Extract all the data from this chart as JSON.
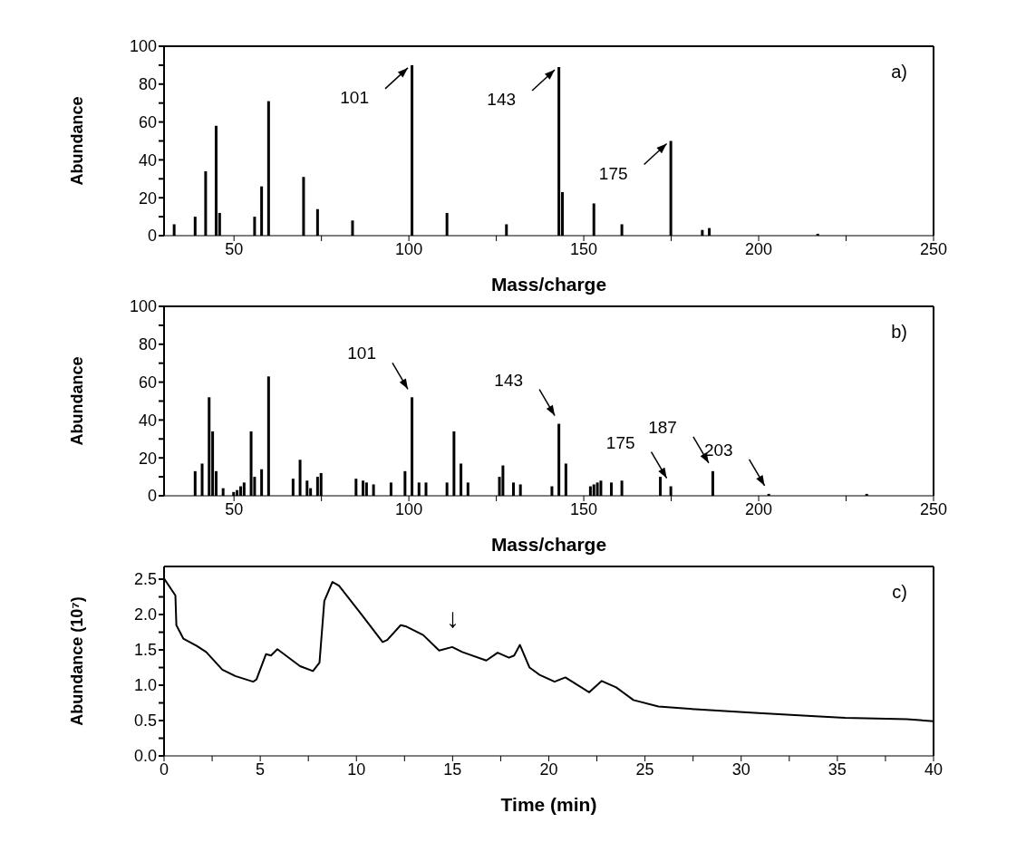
{
  "chart_data": [
    {
      "type": "bar",
      "xlabel": "Mass/charge",
      "ylabel": "Abundance",
      "color": "#000000",
      "x": [
        33,
        39,
        42,
        45,
        46,
        56,
        58,
        60,
        70,
        74,
        84,
        101,
        111,
        128,
        143,
        144,
        153,
        161,
        175,
        184,
        186,
        217
      ],
      "values": [
        6,
        10,
        34,
        58,
        12,
        10,
        26,
        71,
        31,
        14,
        8,
        90,
        12,
        6,
        89,
        23,
        17,
        6,
        50,
        3,
        4,
        1
      ],
      "xlim": [
        30,
        250
      ],
      "xticks": [
        50,
        {
          "value": 75,
          "label": null
        },
        100,
        {
          "value": 125,
          "label": null
        },
        150,
        {
          "value": 175,
          "label": null
        },
        200,
        {
          "value": 225,
          "label": null
        },
        250
      ],
      "ylim": [
        0,
        100
      ],
      "yticks": [
        0,
        {
          "value": 10,
          "label": null
        },
        20,
        {
          "value": 30,
          "label": null
        },
        40,
        {
          "value": 50,
          "label": null
        },
        60,
        {
          "value": 70,
          "label": null
        },
        80,
        {
          "value": 90,
          "label": null
        },
        100
      ],
      "annotations": [
        "a)",
        {
          "text": "101",
          "x": 101,
          "y": 90
        },
        {
          "text": "143",
          "x": 143,
          "y": 89
        },
        {
          "text": "175",
          "x": 175,
          "y": 50
        }
      ]
    },
    {
      "type": "bar",
      "xlabel": "Mass/charge",
      "ylabel": "Abundance",
      "color": "#000000",
      "x": [
        39,
        41,
        43,
        44,
        45,
        47,
        50,
        51,
        52,
        53,
        55,
        56,
        58,
        60,
        67,
        69,
        71,
        72,
        74,
        75,
        85,
        87,
        88,
        90,
        95,
        99,
        101,
        103,
        105,
        111,
        113,
        115,
        117,
        126,
        127,
        130,
        132,
        141,
        143,
        145,
        152,
        153,
        154,
        155,
        158,
        161,
        172,
        175,
        187,
        203,
        231
      ],
      "values": [
        13,
        17,
        52,
        34,
        13,
        4,
        2,
        3,
        5,
        7,
        34,
        10,
        14,
        63,
        9,
        19,
        8,
        4,
        10,
        12,
        9,
        8,
        7,
        6,
        7,
        13,
        52,
        7,
        7,
        7,
        34,
        17,
        7,
        10,
        16,
        7,
        6,
        5,
        38,
        17,
        5,
        6,
        7,
        8,
        7,
        8,
        10,
        5,
        13,
        1,
        1
      ],
      "xlim": [
        30,
        250
      ],
      "xticks": [
        50,
        {
          "value": 75,
          "label": null
        },
        100,
        {
          "value": 125,
          "label": null
        },
        150,
        {
          "value": 175,
          "label": null
        },
        200,
        {
          "value": 225,
          "label": null
        },
        250
      ],
      "ylim": [
        0,
        100
      ],
      "yticks": [
        0,
        {
          "value": 10,
          "label": null
        },
        20,
        {
          "value": 30,
          "label": null
        },
        40,
        {
          "value": 50,
          "label": null
        },
        60,
        {
          "value": 70,
          "label": null
        },
        80,
        {
          "value": 90,
          "label": null
        },
        100
      ],
      "annotations": [
        "b)",
        {
          "text": "101",
          "x": 101,
          "y": 52
        },
        {
          "text": "143",
          "x": 143,
          "y": 38
        },
        {
          "text": "175",
          "x": 175,
          "y": 5
        },
        {
          "text": "187",
          "x": 187,
          "y": 13
        },
        {
          "text": "203",
          "x": 203,
          "y": 1
        }
      ]
    },
    {
      "type": "line",
      "xlabel": "Time (min)",
      "ylabel": "Abundance (10⁷)",
      "color": "#000000",
      "x": [
        0,
        0.59,
        0.64,
        1.0,
        1.68,
        2.19,
        3.03,
        3.7,
        4.63,
        4.8,
        5.3,
        5.56,
        5.89,
        7.07,
        7.74,
        8.08,
        8.33,
        8.75,
        9.09,
        10.27,
        11.36,
        11.6,
        12.3,
        12.6,
        13.47,
        14.3,
        14.98,
        15.5,
        16.75,
        17.34,
        17.93,
        18.2,
        18.5,
        19.0,
        19.5,
        20.3,
        20.86,
        22.1,
        22.75,
        23.5,
        24.4,
        25.7,
        27.6,
        30.7,
        33.85,
        35.4,
        38.6,
        40
      ],
      "values": [
        2.51,
        2.27,
        1.85,
        1.66,
        1.56,
        1.47,
        1.22,
        1.13,
        1.05,
        1.08,
        1.44,
        1.42,
        1.51,
        1.27,
        1.2,
        1.32,
        2.19,
        2.46,
        2.41,
        2.0,
        1.61,
        1.64,
        1.85,
        1.83,
        1.71,
        1.49,
        1.54,
        1.47,
        1.35,
        1.46,
        1.39,
        1.42,
        1.57,
        1.25,
        1.15,
        1.05,
        1.11,
        0.9,
        1.06,
        0.97,
        0.79,
        0.7,
        0.66,
        0.61,
        0.56,
        0.54,
        0.52,
        0.49
      ],
      "xlim": [
        0,
        40
      ],
      "xticks": [
        0,
        {
          "value": 2.5,
          "label": null
        },
        5,
        {
          "value": 7.5,
          "label": null
        },
        10,
        {
          "value": 12.5,
          "label": null
        },
        15,
        {
          "value": 17.5,
          "label": null
        },
        20,
        {
          "value": 22.5,
          "label": null
        },
        25,
        {
          "value": 27.5,
          "label": null
        },
        30,
        {
          "value": 32.5,
          "label": null
        },
        35,
        {
          "value": 37.5,
          "label": null
        },
        40
      ],
      "ylim": [
        0,
        2.68
      ],
      "yticks": [
        {
          "value": 0,
          "label": "0.0"
        },
        {
          "value": 0.25,
          "label": null
        },
        {
          "value": 0.5,
          "label": "0.5"
        },
        {
          "value": 0.75,
          "label": null
        },
        {
          "value": 1,
          "label": "1.0"
        },
        {
          "value": 1.25,
          "label": null
        },
        {
          "value": 1.5,
          "label": "1.5"
        },
        {
          "value": 1.75,
          "label": null
        },
        {
          "value": 2,
          "label": "2.0"
        },
        {
          "value": 2.25,
          "label": null
        },
        {
          "value": 2.5,
          "label": "2.5"
        }
      ],
      "annotations": [
        "c)",
        {
          "text": "↓",
          "x": 15,
          "y": 1.54
        }
      ]
    }
  ]
}
